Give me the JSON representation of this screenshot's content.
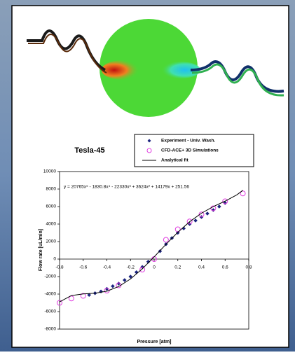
{
  "chart_data": {
    "type": "scatter",
    "title": "Tesla-45",
    "x_label": "Pressure  [atm]",
    "y_label": "Flow rate [uL/min]",
    "annotation": "y = 20765x⁵ - 1830.8x⁴ - 22330x³ + 3624x² + 14179x + 251.56",
    "xlim": [
      -0.8,
      0.8
    ],
    "xticks": [
      -0.8,
      -0.6,
      -0.4,
      -0.2,
      0,
      0.2,
      0.4,
      0.6,
      0.8
    ],
    "ylim": [
      -8000,
      10000
    ],
    "yticks": [
      10000,
      8000,
      6000,
      4000,
      2000,
      0,
      -2000,
      -4000,
      -6000,
      -8000
    ],
    "series": [
      {
        "name": "Experiment - Univ. Wash.",
        "color": "#1a237e",
        "marker": "diamond",
        "x": [
          -0.55,
          -0.5,
          -0.45,
          -0.4,
          -0.35,
          -0.3,
          -0.25,
          -0.2,
          -0.15,
          -0.1,
          -0.05,
          0.05,
          0.1,
          0.15,
          0.2,
          0.25,
          0.3,
          0.35,
          0.4,
          0.45,
          0.5,
          0.55,
          0.6
        ],
        "values": [
          -4100,
          -3900,
          -3700,
          -3400,
          -3100,
          -2800,
          -2400,
          -2000,
          -1500,
          -900,
          -300,
          900,
          1700,
          2400,
          3000,
          3500,
          4000,
          4400,
          4800,
          5200,
          5600,
          6000,
          6400
        ]
      },
      {
        "name": "CFD-ACE+ 3D Simulations",
        "color": "#e040e0",
        "marker": "open-circle",
        "x": [
          -0.8,
          -0.7,
          -0.6,
          -0.4,
          -0.3,
          -0.1,
          0,
          0.1,
          0.2,
          0.3,
          0.4,
          0.5,
          0.6,
          0.75
        ],
        "values": [
          -5000,
          -4500,
          -4200,
          -3600,
          -3000,
          -1200,
          0,
          2200,
          3400,
          4300,
          5100,
          5800,
          6600,
          7500
        ]
      },
      {
        "name": "Analytical fit",
        "color": "#000000",
        "marker": "line",
        "x": [
          -0.8,
          -0.7,
          -0.6,
          -0.5,
          -0.4,
          -0.3,
          -0.2,
          -0.1,
          0,
          0.1,
          0.2,
          0.3,
          0.4,
          0.5,
          0.6,
          0.7,
          0.75
        ],
        "values": [
          -4893,
          -4168,
          -3979,
          -3904,
          -3671,
          -3138,
          -2270,
          -1108,
          252,
          1684,
          3058,
          4264,
          5241,
          5992,
          6619,
          7344,
          7854
        ]
      }
    ]
  }
}
